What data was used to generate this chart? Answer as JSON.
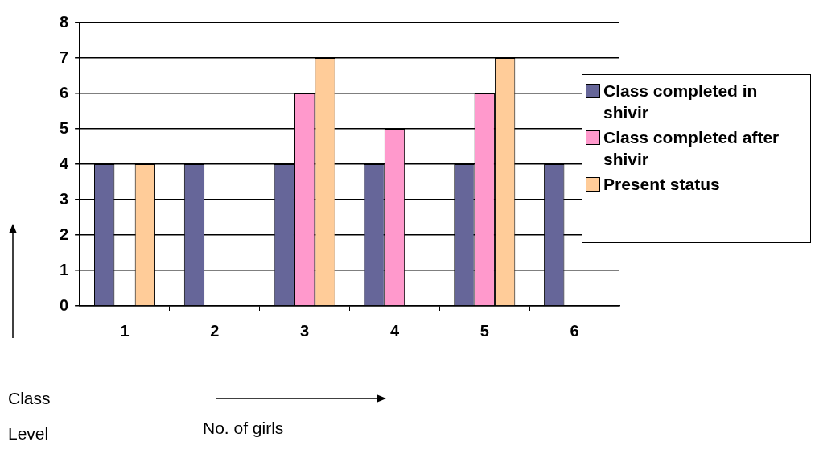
{
  "chart_data": {
    "type": "bar",
    "xlabel": "No. of girls",
    "ylabel": "Class Level",
    "categories": [
      "1",
      "2",
      "3",
      "4",
      "5",
      "6"
    ],
    "series": [
      {
        "name": "Class completed in shivir",
        "color": "#666699",
        "values": [
          4,
          4,
          4,
          4,
          4,
          4
        ]
      },
      {
        "name": "Class completed after shivir",
        "color": "#ff99cc",
        "values": [
          null,
          null,
          6,
          5,
          6,
          null
        ]
      },
      {
        "name": "Present status",
        "color": "#ffcc99",
        "values": [
          4,
          null,
          7,
          null,
          7,
          null
        ]
      }
    ],
    "ylim": [
      0,
      8
    ],
    "yticks": [
      0,
      1,
      2,
      3,
      4,
      5,
      6,
      7,
      8
    ],
    "grid": "y",
    "legend": "right"
  }
}
